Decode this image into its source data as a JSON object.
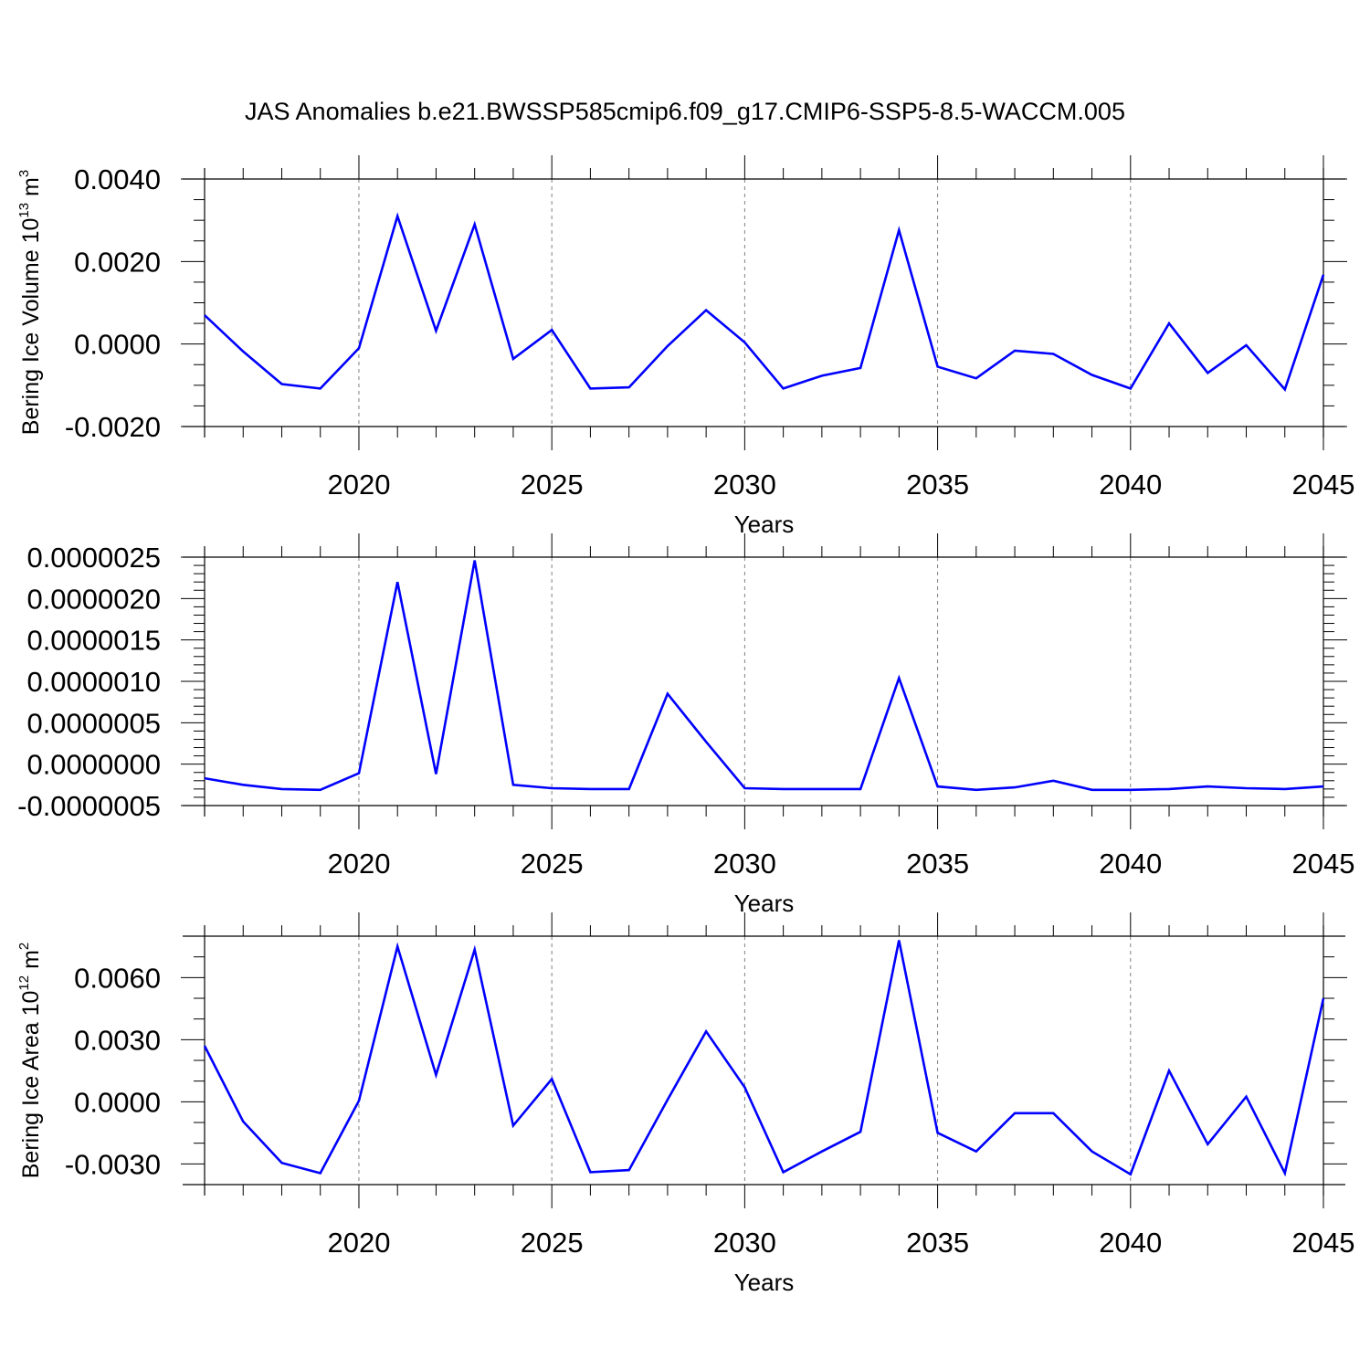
{
  "title": "JAS Anomalies b.e21.BWSSP585cmip6.f09_g17.CMIP6-SSP5-8.5-WACCM.005",
  "colors": {
    "line": "#0000ff",
    "axis": "#000000",
    "grid": "#808080"
  },
  "chart_data": [
    {
      "type": "line",
      "xlabel": "Years",
      "ylabel_main": "Bering Ice Volume 10",
      "ylabel_exp": "13",
      "ylabel_unit": " m",
      "ylabel_unit_exp": "3",
      "xlim": [
        2016,
        2045
      ],
      "ylim": [
        -0.002,
        0.004
      ],
      "x_ticks": [
        2020,
        2025,
        2030,
        2035,
        2040,
        2045
      ],
      "x_tick_labels": [
        "2020",
        "2025",
        "2030",
        "2035",
        "2040",
        "2045"
      ],
      "y_ticks": [
        -0.002,
        0,
        0.002,
        0.004
      ],
      "y_tick_labels": [
        "-0.0020",
        "0.0000",
        "0.0020",
        "0.0040"
      ],
      "y_minor_step": 0.0005,
      "grid_vertical_dashed": true,
      "series": [
        {
          "x": [
            2016,
            2017,
            2018,
            2019,
            2020,
            2021,
            2022,
            2023,
            2024,
            2025,
            2026,
            2027,
            2028,
            2029,
            2030,
            2031,
            2032,
            2033,
            2034,
            2035,
            2036,
            2037,
            2038,
            2039,
            2040,
            2041,
            2042,
            2043,
            2044,
            2045
          ],
          "values": [
            0.0007,
            -0.00018,
            -0.00097,
            -0.00108,
            -0.0001,
            0.0031,
            0.00032,
            0.0029,
            -0.00036,
            0.00034,
            -0.00108,
            -0.00105,
            -5e-05,
            0.00082,
            4e-05,
            -0.00108,
            -0.00077,
            -0.00058,
            0.00276,
            -0.00055,
            -0.00083,
            -0.00016,
            -0.00024,
            -0.00075,
            -0.00108,
            0.0005,
            -0.0007,
            -3e-05,
            -0.0011,
            0.00168
          ]
        }
      ]
    },
    {
      "type": "line",
      "xlabel": "Years",
      "ylabel_main": "",
      "xlim": [
        2016,
        2045
      ],
      "ylim": [
        -5e-07,
        2.5e-06
      ],
      "x_ticks": [
        2020,
        2025,
        2030,
        2035,
        2040,
        2045
      ],
      "x_tick_labels": [
        "2020",
        "2025",
        "2030",
        "2035",
        "2040",
        "2045"
      ],
      "y_ticks": [
        -5e-07,
        0,
        5e-07,
        1e-06,
        1.5e-06,
        2e-06,
        2.5e-06
      ],
      "y_tick_labels": [
        "-0.0000005",
        "0.0000000",
        "0.0000005",
        "0.0000010",
        "0.0000015",
        "0.0000020",
        "0.0000025"
      ],
      "y_minor_step": 1e-07,
      "grid_vertical_dashed": true,
      "series": [
        {
          "x": [
            2016,
            2017,
            2018,
            2019,
            2020,
            2021,
            2022,
            2023,
            2024,
            2025,
            2026,
            2027,
            2028,
            2029,
            2030,
            2031,
            2032,
            2033,
            2034,
            2035,
            2036,
            2037,
            2038,
            2039,
            2040,
            2041,
            2042,
            2043,
            2044,
            2045
          ],
          "values": [
            -1.7e-07,
            -2.5e-07,
            -3e-07,
            -3.1e-07,
            -1.1e-07,
            2.2e-06,
            -1.2e-07,
            2.46e-06,
            -2.5e-07,
            -2.9e-07,
            -3e-07,
            -3e-07,
            8.5e-07,
            2.7e-07,
            -2.9e-07,
            -3e-07,
            -3e-07,
            -3e-07,
            1.04e-06,
            -2.7e-07,
            -3.1e-07,
            -2.8e-07,
            -2e-07,
            -3.1e-07,
            -3.1e-07,
            -3e-07,
            -2.7e-07,
            -2.9e-07,
            -3e-07,
            -2.7e-07
          ]
        }
      ]
    },
    {
      "type": "line",
      "xlabel": "Years",
      "ylabel_main": "Bering Ice Area 10",
      "ylabel_exp": "12",
      "ylabel_unit": " m",
      "ylabel_unit_exp": "2",
      "xlim": [
        2016,
        2045
      ],
      "ylim": [
        -0.004,
        0.008
      ],
      "x_ticks": [
        2020,
        2025,
        2030,
        2035,
        2040,
        2045
      ],
      "x_tick_labels": [
        "2020",
        "2025",
        "2030",
        "2035",
        "2040",
        "2045"
      ],
      "y_ticks": [
        -0.003,
        0,
        0.003,
        0.006
      ],
      "y_tick_labels": [
        "-0.0030",
        "0.0000",
        "0.0030",
        "0.0060"
      ],
      "y_minor_step": 0.001,
      "grid_vertical_dashed": true,
      "series": [
        {
          "x": [
            2016,
            2017,
            2018,
            2019,
            2020,
            2021,
            2022,
            2023,
            2024,
            2025,
            2026,
            2027,
            2028,
            2029,
            2030,
            2031,
            2032,
            2033,
            2034,
            2035,
            2036,
            2037,
            2038,
            2039,
            2040,
            2041,
            2042,
            2043,
            2044,
            2045
          ],
          "values": [
            0.0027,
            -0.00095,
            -0.00295,
            -0.00345,
            5e-05,
            0.0075,
            0.0013,
            0.00735,
            -0.00115,
            0.0011,
            -0.0034,
            -0.0033,
            0.0001,
            0.0034,
            0.0007,
            -0.0034,
            -0.0024,
            -0.00145,
            0.0078,
            -0.0015,
            -0.0024,
            -0.00055,
            -0.00055,
            -0.0024,
            -0.0035,
            0.0015,
            -0.00205,
            0.00025,
            -0.00345,
            0.005
          ]
        }
      ]
    }
  ]
}
